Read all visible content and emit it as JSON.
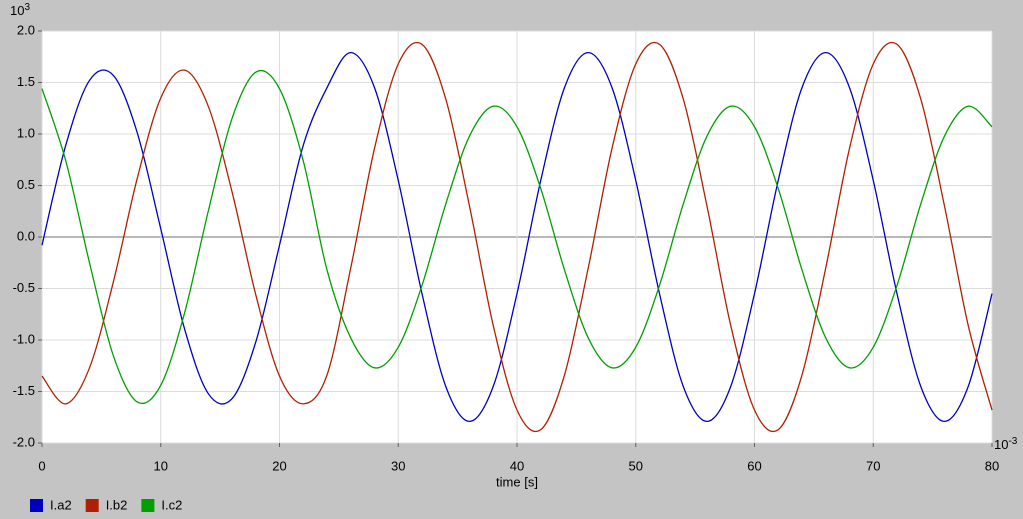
{
  "chart_data": {
    "type": "line",
    "x_label": "time [s]",
    "y_multiplier": {
      "base": "10",
      "exponent": "3"
    },
    "x_multiplier": {
      "base": "10",
      "exponent": "-3"
    },
    "x": [
      0,
      2,
      4,
      6,
      8,
      10,
      12,
      14,
      16,
      18,
      20,
      22,
      24,
      26,
      28,
      30,
      32,
      34,
      36,
      38,
      40,
      42,
      44,
      46,
      48,
      50,
      52,
      54,
      56,
      58,
      60,
      62,
      64,
      66,
      68,
      70,
      72,
      74,
      76,
      78,
      80
    ],
    "series": [
      {
        "name": "I.a2",
        "color": "#0000c0",
        "values": [
          -0.08,
          0.89,
          1.52,
          1.57,
          1.02,
          0.08,
          -0.89,
          -1.52,
          -1.57,
          -1.02,
          -0.08,
          0.89,
          1.45,
          1.79,
          1.45,
          0.55,
          -0.55,
          -1.45,
          -1.79,
          -1.45,
          -0.55,
          0.55,
          1.45,
          1.79,
          1.45,
          0.55,
          -0.55,
          -1.45,
          -1.79,
          -1.45,
          -0.55,
          0.55,
          1.45,
          1.79,
          1.45,
          0.55,
          -0.55,
          -1.45,
          -1.79,
          -1.45,
          -0.55
        ]
      },
      {
        "name": "I.b2",
        "color": "#b02000",
        "values": [
          -1.35,
          -1.62,
          -1.27,
          -0.44,
          0.56,
          1.35,
          1.62,
          1.27,
          0.44,
          -0.56,
          -1.35,
          -1.62,
          -1.34,
          -0.3,
          0.86,
          1.68,
          1.87,
          1.34,
          0.3,
          -0.86,
          -1.68,
          -1.87,
          -1.34,
          -0.3,
          0.86,
          1.68,
          1.87,
          1.34,
          0.3,
          -0.86,
          -1.68,
          -1.87,
          -1.34,
          -0.3,
          0.86,
          1.68,
          1.87,
          1.34,
          0.3,
          -0.86,
          -1.68
        ]
      },
      {
        "name": "I.c2",
        "color": "#00a000",
        "values": [
          1.44,
          0.74,
          -0.25,
          -1.15,
          -1.6,
          -1.44,
          -0.74,
          0.25,
          1.15,
          1.6,
          1.44,
          0.74,
          -0.32,
          -0.98,
          -1.27,
          -1.07,
          -0.47,
          0.32,
          0.98,
          1.27,
          1.07,
          0.47,
          -0.32,
          -0.98,
          -1.27,
          -1.07,
          -0.47,
          0.32,
          0.98,
          1.27,
          1.07,
          0.47,
          -0.32,
          -0.98,
          -1.27,
          -1.07,
          -0.47,
          0.32,
          0.98,
          1.27,
          1.07
        ]
      }
    ],
    "xlim": [
      0,
      80
    ],
    "xticks": [
      0,
      10,
      20,
      30,
      40,
      50,
      60,
      70,
      80
    ],
    "ylim": [
      -2,
      2
    ],
    "yticks": [
      {
        "value": -2,
        "label": "-2.0"
      },
      {
        "value": -1.5,
        "label": "-1.5"
      },
      {
        "value": -1,
        "label": "-1.0"
      },
      {
        "value": -0.5,
        "label": "-0.5"
      },
      {
        "value": 0,
        "label": "0.0"
      },
      {
        "value": 0.5,
        "label": "0.5"
      },
      {
        "value": 1,
        "label": "1.0"
      },
      {
        "value": 1.5,
        "label": "1.5"
      },
      {
        "value": 2,
        "label": "2.0"
      }
    ],
    "grid": true,
    "legend": "bottom-left"
  }
}
